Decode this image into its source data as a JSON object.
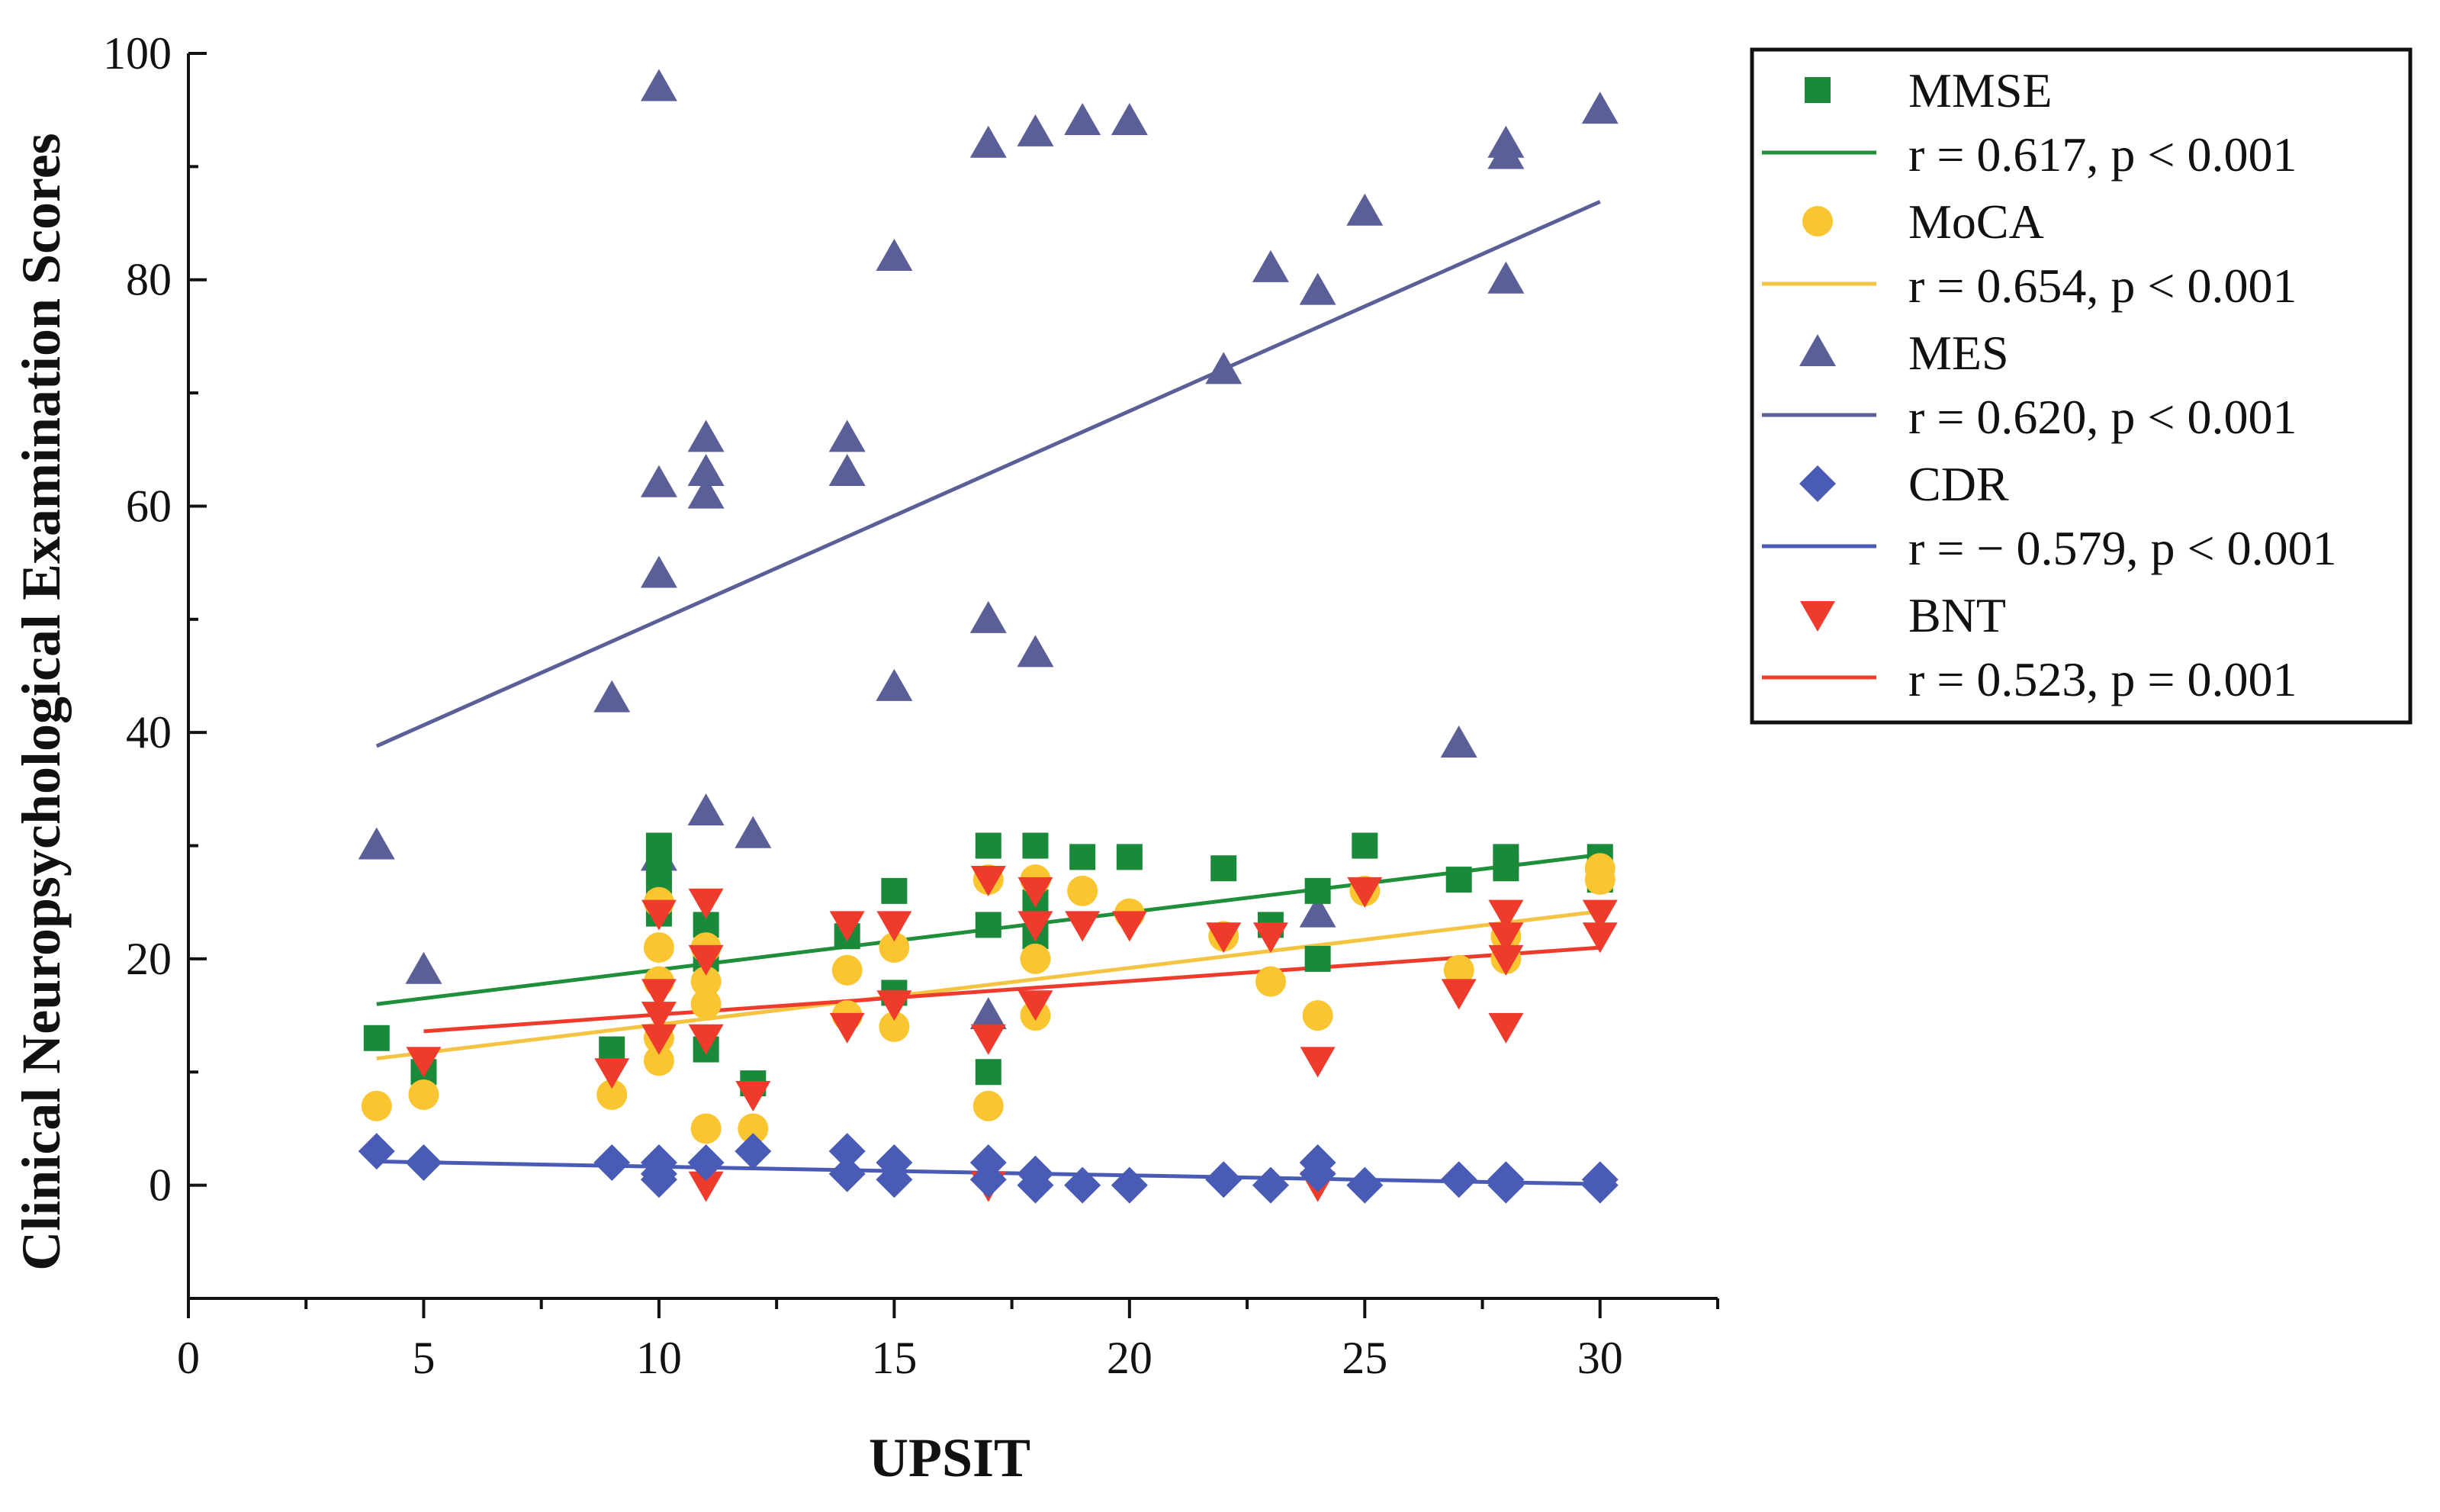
{
  "chart_data": {
    "type": "scatter",
    "title": "",
    "xlabel": "UPSIT",
    "ylabel": "Clinical Neuropsychological Examination Scores",
    "xlim": [
      0,
      32.5
    ],
    "ylim": [
      -10,
      100
    ],
    "xticks": [
      0,
      5,
      10,
      15,
      20,
      25,
      30
    ],
    "yticks": [
      0,
      20,
      40,
      60,
      80,
      100
    ],
    "grid": false,
    "legend_position": "top-right",
    "series": [
      {
        "name": "MMSE",
        "stat": "r = 0.617, p < 0.001",
        "marker": "square",
        "color": "#1a8a3a",
        "line_color": "#1f8f3a",
        "fit": {
          "x": [
            4,
            30
          ],
          "y": [
            16,
            29.2
          ]
        },
        "points": [
          [
            4,
            13
          ],
          [
            5,
            10
          ],
          [
            9,
            12
          ],
          [
            10,
            30
          ],
          [
            10,
            28
          ],
          [
            10,
            26
          ],
          [
            10,
            24
          ],
          [
            11,
            23
          ],
          [
            11,
            20
          ],
          [
            11,
            12
          ],
          [
            12,
            9
          ],
          [
            14,
            22
          ],
          [
            15,
            26
          ],
          [
            15,
            17
          ],
          [
            17,
            30
          ],
          [
            17,
            23
          ],
          [
            17,
            10
          ],
          [
            18,
            30
          ],
          [
            18,
            25
          ],
          [
            18,
            22
          ],
          [
            19,
            29
          ],
          [
            20,
            29
          ],
          [
            22,
            28
          ],
          [
            23,
            23
          ],
          [
            24,
            26
          ],
          [
            24,
            20
          ],
          [
            25,
            30
          ],
          [
            27,
            27
          ],
          [
            28,
            29
          ],
          [
            28,
            28
          ],
          [
            30,
            29
          ],
          [
            30,
            27
          ]
        ]
      },
      {
        "name": "MoCA",
        "stat": "r = 0.654, p < 0.001",
        "marker": "circle",
        "color": "#fbc531",
        "line_color": "#f5c342",
        "fit": {
          "x": [
            4,
            30
          ],
          "y": [
            11.2,
            24.2
          ]
        },
        "points": [
          [
            4,
            7
          ],
          [
            5,
            8
          ],
          [
            9,
            8
          ],
          [
            10,
            25
          ],
          [
            10,
            21
          ],
          [
            10,
            18
          ],
          [
            10,
            13
          ],
          [
            10,
            11
          ],
          [
            11,
            21
          ],
          [
            11,
            18
          ],
          [
            11,
            16
          ],
          [
            11,
            5
          ],
          [
            12,
            5
          ],
          [
            14,
            19
          ],
          [
            14,
            15
          ],
          [
            15,
            21
          ],
          [
            15,
            14
          ],
          [
            17,
            27
          ],
          [
            17,
            7
          ],
          [
            18,
            27
          ],
          [
            18,
            20
          ],
          [
            18,
            15
          ],
          [
            19,
            26
          ],
          [
            20,
            24
          ],
          [
            22,
            22
          ],
          [
            23,
            18
          ],
          [
            24,
            15
          ],
          [
            25,
            26
          ],
          [
            27,
            19
          ],
          [
            28,
            22
          ],
          [
            28,
            20
          ],
          [
            30,
            28
          ],
          [
            30,
            27
          ]
        ]
      },
      {
        "name": "MES",
        "stat": "r = 0.620, p < 0.001",
        "marker": "triangle-up",
        "color": "#5b5f97",
        "line_color": "#5b5f97",
        "fit": {
          "x": [
            4,
            30
          ],
          "y": [
            38.8,
            86.9
          ]
        },
        "points": [
          [
            4,
            30
          ],
          [
            5,
            19
          ],
          [
            9,
            43
          ],
          [
            10,
            97
          ],
          [
            10,
            62
          ],
          [
            10,
            54
          ],
          [
            10,
            29
          ],
          [
            11,
            66
          ],
          [
            11,
            63
          ],
          [
            11,
            61
          ],
          [
            11,
            33
          ],
          [
            12,
            31
          ],
          [
            14,
            66
          ],
          [
            14,
            63
          ],
          [
            15,
            82
          ],
          [
            15,
            44
          ],
          [
            17,
            92
          ],
          [
            17,
            50
          ],
          [
            17,
            15
          ],
          [
            18,
            93
          ],
          [
            18,
            47
          ],
          [
            19,
            94
          ],
          [
            20,
            94
          ],
          [
            22,
            72
          ],
          [
            23,
            81
          ],
          [
            24,
            79
          ],
          [
            24,
            24
          ],
          [
            25,
            86
          ],
          [
            27,
            39
          ],
          [
            28,
            92
          ],
          [
            28,
            91
          ],
          [
            28,
            80
          ],
          [
            30,
            95
          ]
        ]
      },
      {
        "name": "CDR",
        "stat": "r = − 0.579, p < 0.001",
        "marker": "diamond",
        "color": "#4a5bb5",
        "line_color": "#4a5bb5",
        "fit": {
          "x": [
            4,
            30
          ],
          "y": [
            2.1,
            0.1
          ]
        },
        "points": [
          [
            4,
            3
          ],
          [
            5,
            2
          ],
          [
            9,
            2
          ],
          [
            10,
            2
          ],
          [
            10,
            1
          ],
          [
            10,
            0.5
          ],
          [
            11,
            2
          ],
          [
            12,
            3
          ],
          [
            14,
            3
          ],
          [
            14,
            1
          ],
          [
            15,
            2
          ],
          [
            15,
            0.5
          ],
          [
            17,
            2
          ],
          [
            17,
            0.5
          ],
          [
            18,
            1
          ],
          [
            18,
            0
          ],
          [
            19,
            0
          ],
          [
            20,
            0
          ],
          [
            22,
            0.5
          ],
          [
            23,
            0
          ],
          [
            24,
            2
          ],
          [
            24,
            1
          ],
          [
            25,
            0
          ],
          [
            27,
            0.5
          ],
          [
            28,
            0.5
          ],
          [
            28,
            0
          ],
          [
            30,
            0.5
          ],
          [
            30,
            0
          ]
        ]
      },
      {
        "name": "BNT",
        "stat": "r = 0.523, p = 0.001",
        "marker": "triangle-down",
        "color": "#ef3b2c",
        "line_color": "#ef3b2c",
        "fit": {
          "x": [
            5,
            30
          ],
          "y": [
            13.6,
            21
          ]
        },
        "points": [
          [
            5,
            11
          ],
          [
            9,
            10
          ],
          [
            10,
            24
          ],
          [
            10,
            17
          ],
          [
            10,
            15
          ],
          [
            10,
            13
          ],
          [
            11,
            25
          ],
          [
            11,
            20
          ],
          [
            11,
            13
          ],
          [
            11,
            0
          ],
          [
            12,
            8
          ],
          [
            14,
            23
          ],
          [
            14,
            14
          ],
          [
            15,
            23
          ],
          [
            15,
            16
          ],
          [
            17,
            27
          ],
          [
            17,
            13
          ],
          [
            17,
            0
          ],
          [
            18,
            26
          ],
          [
            18,
            23
          ],
          [
            18,
            16
          ],
          [
            19,
            23
          ],
          [
            20,
            23
          ],
          [
            22,
            22
          ],
          [
            23,
            22
          ],
          [
            24,
            11
          ],
          [
            24,
            0
          ],
          [
            25,
            26
          ],
          [
            27,
            17
          ],
          [
            28,
            24
          ],
          [
            28,
            22
          ],
          [
            28,
            20
          ],
          [
            28,
            14
          ],
          [
            30,
            24
          ],
          [
            30,
            22
          ]
        ]
      }
    ]
  }
}
